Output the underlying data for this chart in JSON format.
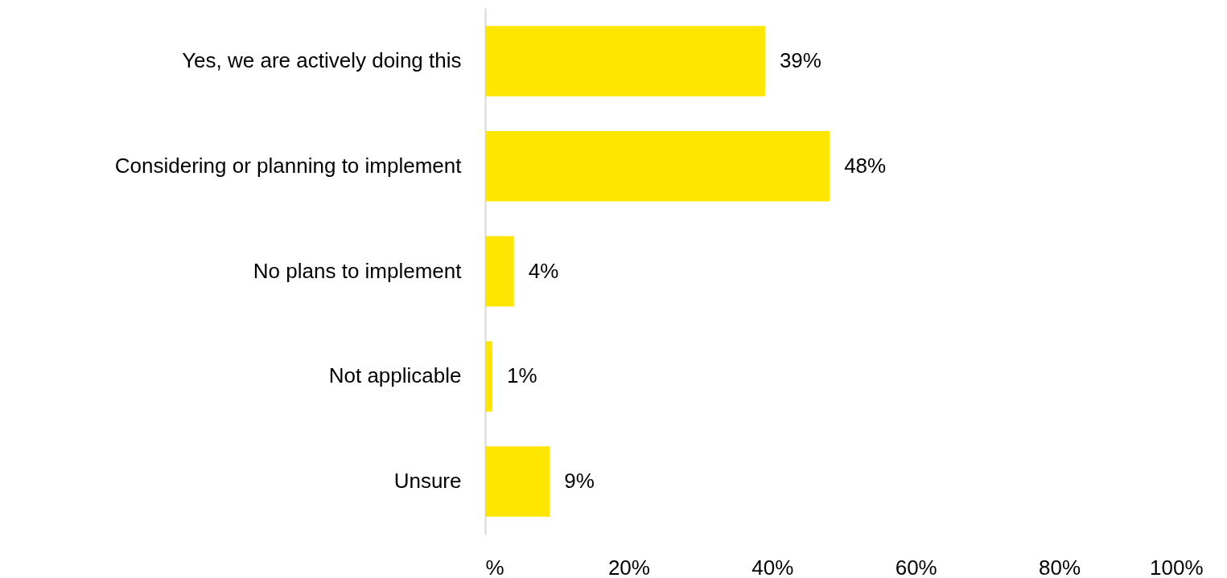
{
  "chart_data": {
    "type": "bar",
    "orientation": "horizontal",
    "categories": [
      "Yes, we are actively doing this",
      "Considering or planning to implement",
      "No plans to implement",
      "Not applicable",
      "Unsure"
    ],
    "values": [
      39,
      48,
      4,
      1,
      9
    ],
    "value_labels": [
      "39%",
      "48%",
      "4%",
      "1%",
      "9%"
    ],
    "color": "#ffe600",
    "xlim": [
      0,
      100
    ],
    "xticks": [
      {
        "value": 0,
        "label": "%"
      },
      {
        "value": 20,
        "label": "20%"
      },
      {
        "value": 40,
        "label": "40%"
      },
      {
        "value": 60,
        "label": "60%"
      },
      {
        "value": 80,
        "label": "80%"
      },
      {
        "value": 100,
        "label": "100%"
      }
    ],
    "grid": false
  }
}
